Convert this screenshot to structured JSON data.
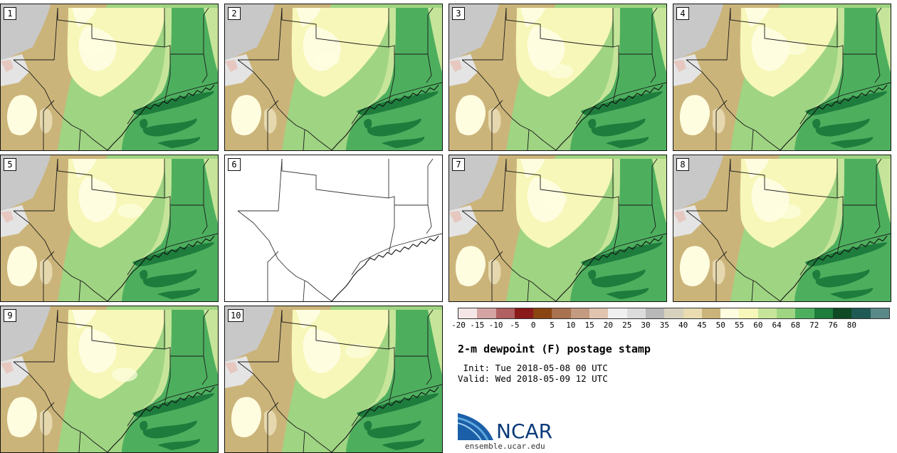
{
  "title": "2-m dewpoint (F) postage stamp",
  "init": " Init: Tue 2018-05-08 00 UTC",
  "valid": "Valid: Wed 2018-05-09 12 UTC",
  "colorbar": {
    "ticks": [
      "-20",
      "-15",
      "-10",
      "-5",
      "0",
      "5",
      "10",
      "15",
      "20",
      "25",
      "30",
      "35",
      "40",
      "45",
      "50",
      "55",
      "60",
      "64",
      "68",
      "72",
      "76",
      "80"
    ],
    "colors": [
      "#f4e6e6",
      "#d4a3a3",
      "#b06060",
      "#8b1a1a",
      "#8b4513",
      "#a87150",
      "#c49a80",
      "#e0c4b0",
      "#f0f0f0",
      "#dcdcdc",
      "#b8b8b8",
      "#d7d2be",
      "#e8dcb0",
      "#cbb47a",
      "#fffde0",
      "#f6f7b8",
      "#c7e59a",
      "#9fd482",
      "#4daf5e",
      "#1e7c3c",
      "#0f4a24",
      "#1f5a55",
      "#5a8a88"
    ]
  },
  "members": [
    {
      "label": "1",
      "type": "field"
    },
    {
      "label": "2",
      "type": "field"
    },
    {
      "label": "3",
      "type": "field"
    },
    {
      "label": "4",
      "type": "field"
    },
    {
      "label": "5",
      "type": "field"
    },
    {
      "label": "6",
      "type": "missing"
    },
    {
      "label": "7",
      "type": "field"
    },
    {
      "label": "8",
      "type": "field"
    },
    {
      "label": "9",
      "type": "field"
    },
    {
      "label": "10",
      "type": "field"
    }
  ],
  "logo": {
    "org": "NCAR",
    "url": "ensemble.ucar.edu"
  }
}
